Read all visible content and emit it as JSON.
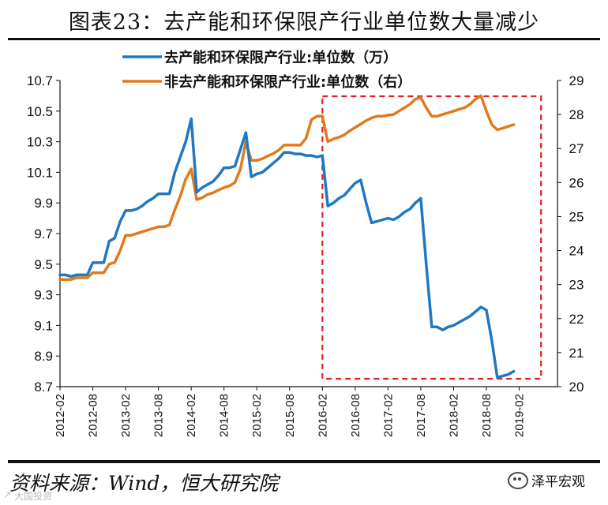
{
  "title": "图表23：去产能和环保限产行业单位数大量减少",
  "source": "资料来源：Wind，恒大研究院",
  "brand": "泽平宏观",
  "watermark": [
    "↗",
    "大国投资"
  ],
  "colors": {
    "series1": "#1f78c1",
    "series2": "#e07a1e",
    "highlight": "#e02020",
    "axis": "#111111"
  },
  "chart_data": {
    "type": "line",
    "title": "图表23：去产能和环保限产行业单位数大量减少",
    "x_tick_labels": [
      "2012-02",
      "2012-08",
      "2013-02",
      "2013-08",
      "2014-02",
      "2014-08",
      "2015-02",
      "2015-08",
      "2016-02",
      "2016-08",
      "2017-02",
      "2017-08",
      "2018-02",
      "2018-08",
      "2019-02"
    ],
    "x_range_months": [
      0,
      91
    ],
    "y_left": {
      "ticks": [
        "10.7",
        "10.5",
        "10.3",
        "10.1",
        "9.9",
        "9.7",
        "9.5",
        "9.3",
        "9.1",
        "8.9",
        "8.7"
      ],
      "ylim": [
        8.7,
        10.7
      ]
    },
    "y_right": {
      "ticks": [
        "29",
        "28",
        "27",
        "26",
        "25",
        "24",
        "23",
        "22",
        "21",
        "20"
      ],
      "ylim": [
        20,
        29
      ]
    },
    "highlight_box": {
      "x_start_month": 48,
      "x_end_month": 88,
      "style": "dashed"
    },
    "series": [
      {
        "name": "去产能和环保限产行业:单位数（万）",
        "axis": "left",
        "points": [
          [
            0,
            9.43
          ],
          [
            1,
            9.43
          ],
          [
            2,
            9.42
          ],
          [
            3,
            9.43
          ],
          [
            4,
            9.43
          ],
          [
            5,
            9.43
          ],
          [
            6,
            9.51
          ],
          [
            7,
            9.51
          ],
          [
            8,
            9.51
          ],
          [
            9,
            9.65
          ],
          [
            10,
            9.67
          ],
          [
            11,
            9.78
          ],
          [
            12,
            9.85
          ],
          [
            13,
            9.85
          ],
          [
            14,
            9.86
          ],
          [
            15,
            9.88
          ],
          [
            16,
            9.91
          ],
          [
            17,
            9.93
          ],
          [
            18,
            9.96
          ],
          [
            19,
            9.96
          ],
          [
            20,
            9.96
          ],
          [
            21,
            10.1
          ],
          [
            22,
            10.2
          ],
          [
            23,
            10.3
          ],
          [
            24,
            10.45
          ],
          [
            25,
            9.97
          ],
          [
            26,
            10.0
          ],
          [
            27,
            10.02
          ],
          [
            28,
            10.04
          ],
          [
            29,
            10.08
          ],
          [
            30,
            10.13
          ],
          [
            31,
            10.13
          ],
          [
            32,
            10.14
          ],
          [
            33,
            10.25
          ],
          [
            34,
            10.36
          ],
          [
            35,
            10.07
          ],
          [
            36,
            10.09
          ],
          [
            37,
            10.1
          ],
          [
            38,
            10.13
          ],
          [
            39,
            10.16
          ],
          [
            40,
            10.19
          ],
          [
            41,
            10.23
          ],
          [
            42,
            10.23
          ],
          [
            43,
            10.22
          ],
          [
            44,
            10.22
          ],
          [
            45,
            10.21
          ],
          [
            46,
            10.21
          ],
          [
            47,
            10.2
          ],
          [
            48,
            10.21
          ],
          [
            49,
            9.88
          ],
          [
            50,
            9.9
          ],
          [
            51,
            9.93
          ],
          [
            52,
            9.95
          ],
          [
            53,
            9.99
          ],
          [
            54,
            10.03
          ],
          [
            55,
            10.05
          ],
          [
            56,
            9.9
          ],
          [
            57,
            9.77
          ],
          [
            58,
            9.78
          ],
          [
            59,
            9.79
          ],
          [
            60,
            9.8
          ],
          [
            61,
            9.79
          ],
          [
            62,
            9.81
          ],
          [
            63,
            9.84
          ],
          [
            64,
            9.86
          ],
          [
            65,
            9.9
          ],
          [
            66,
            9.93
          ],
          [
            67,
            9.5
          ],
          [
            68,
            9.09
          ],
          [
            69,
            9.09
          ],
          [
            70,
            9.07
          ],
          [
            71,
            9.09
          ],
          [
            72,
            9.1
          ],
          [
            73,
            9.12
          ],
          [
            74,
            9.14
          ],
          [
            75,
            9.16
          ],
          [
            76,
            9.19
          ],
          [
            77,
            9.22
          ],
          [
            78,
            9.2
          ],
          [
            79,
            9.0
          ],
          [
            80,
            8.76
          ],
          [
            81,
            8.77
          ],
          [
            82,
            8.78
          ],
          [
            83,
            8.8
          ]
        ]
      },
      {
        "name": "非去产能和环保限产行业:单位数（右）",
        "axis": "right",
        "points": [
          [
            0,
            23.15
          ],
          [
            1,
            23.15
          ],
          [
            2,
            23.15
          ],
          [
            3,
            23.2
          ],
          [
            4,
            23.2
          ],
          [
            5,
            23.2
          ],
          [
            6,
            23.35
          ],
          [
            7,
            23.35
          ],
          [
            8,
            23.35
          ],
          [
            9,
            23.6
          ],
          [
            10,
            23.65
          ],
          [
            11,
            24.0
          ],
          [
            12,
            24.45
          ],
          [
            13,
            24.45
          ],
          [
            14,
            24.5
          ],
          [
            15,
            24.55
          ],
          [
            16,
            24.6
          ],
          [
            17,
            24.65
          ],
          [
            18,
            24.7
          ],
          [
            19,
            24.7
          ],
          [
            20,
            24.75
          ],
          [
            21,
            25.2
          ],
          [
            22,
            25.6
          ],
          [
            23,
            26.1
          ],
          [
            24,
            26.4
          ],
          [
            25,
            25.5
          ],
          [
            26,
            25.55
          ],
          [
            27,
            25.65
          ],
          [
            28,
            25.7
          ],
          [
            29,
            25.78
          ],
          [
            30,
            25.85
          ],
          [
            31,
            25.9
          ],
          [
            32,
            26.0
          ],
          [
            33,
            26.4
          ],
          [
            34,
            27.2
          ],
          [
            35,
            26.65
          ],
          [
            36,
            26.65
          ],
          [
            37,
            26.7
          ],
          [
            38,
            26.78
          ],
          [
            39,
            26.85
          ],
          [
            40,
            26.95
          ],
          [
            41,
            27.1
          ],
          [
            42,
            27.1
          ],
          [
            43,
            27.1
          ],
          [
            44,
            27.1
          ],
          [
            45,
            27.3
          ],
          [
            46,
            27.85
          ],
          [
            47,
            27.95
          ],
          [
            48,
            27.95
          ],
          [
            49,
            27.2
          ],
          [
            50,
            27.28
          ],
          [
            51,
            27.33
          ],
          [
            52,
            27.4
          ],
          [
            53,
            27.52
          ],
          [
            54,
            27.62
          ],
          [
            55,
            27.72
          ],
          [
            56,
            27.82
          ],
          [
            57,
            27.9
          ],
          [
            58,
            27.95
          ],
          [
            59,
            27.95
          ],
          [
            60,
            27.98
          ],
          [
            61,
            28.0
          ],
          [
            62,
            28.1
          ],
          [
            63,
            28.2
          ],
          [
            64,
            28.3
          ],
          [
            65,
            28.45
          ],
          [
            66,
            28.5
          ],
          [
            67,
            28.2
          ],
          [
            68,
            27.95
          ],
          [
            69,
            27.95
          ],
          [
            70,
            28.0
          ],
          [
            71,
            28.05
          ],
          [
            72,
            28.1
          ],
          [
            73,
            28.15
          ],
          [
            74,
            28.2
          ],
          [
            75,
            28.3
          ],
          [
            76,
            28.45
          ],
          [
            77,
            28.55
          ],
          [
            78,
            28.1
          ],
          [
            79,
            27.7
          ],
          [
            80,
            27.55
          ],
          [
            81,
            27.6
          ],
          [
            82,
            27.65
          ],
          [
            83,
            27.7
          ]
        ]
      }
    ]
  }
}
